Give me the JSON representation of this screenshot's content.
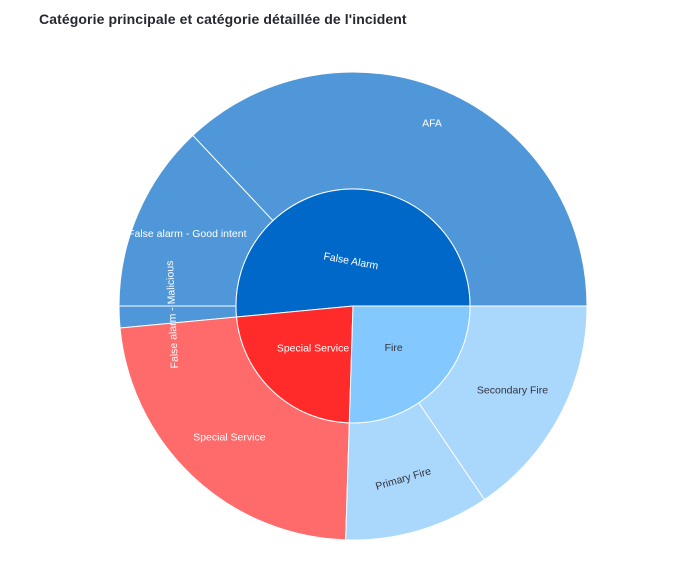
{
  "title": "Catégorie principale et catégorie détaillée de l'incident",
  "chart_data": {
    "type": "sunburst",
    "title": "Catégorie principale et catégorie détaillée de l'incident",
    "inner": [
      {
        "label": "False Alarm",
        "value": 51.5,
        "color": "#0068c9",
        "text_color": "#ffffff"
      },
      {
        "label": "Special Service",
        "value": 23.0,
        "color": "#ff2b2b",
        "text_color": "#ffffff"
      },
      {
        "label": "Fire",
        "value": 25.5,
        "color": "#83c9ff",
        "text_color": "#31333f"
      }
    ],
    "outer": [
      {
        "label": "AFA",
        "parent": "False Alarm",
        "value": 37.0,
        "color": "#4f97d8",
        "text_color": "#ffffff"
      },
      {
        "label": "False alarm - Good intent",
        "parent": "False Alarm",
        "value": 13.0,
        "color": "#4f97d8",
        "text_color": "#ffffff"
      },
      {
        "label": "False alarm - Malicious",
        "parent": "False Alarm",
        "value": 1.5,
        "color": "#4f97d8",
        "text_color": "#ffffff"
      },
      {
        "label": "Special Service",
        "parent": "Special Service",
        "value": 23.0,
        "color": "#ff6b6b",
        "text_color": "#ffffff"
      },
      {
        "label": "Primary Fire",
        "parent": "Fire",
        "value": 10.0,
        "color": "#aad7fc",
        "text_color": "#31333f"
      },
      {
        "label": "Secondary Fire",
        "parent": "Fire",
        "value": 15.5,
        "color": "#aad7fc",
        "text_color": "#31333f"
      }
    ]
  }
}
